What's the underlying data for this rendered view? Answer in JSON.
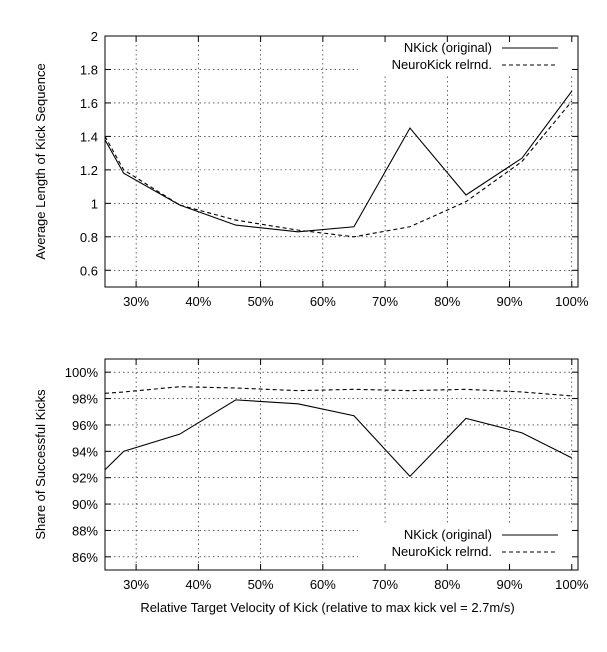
{
  "chart_data": [
    {
      "type": "line",
      "title": "",
      "xlabel": "",
      "ylabel": "Average Length of Kick Sequence",
      "xlim": [
        0.25,
        1.01
      ],
      "ylim": [
        0.5,
        2.0
      ],
      "x_ticks": [
        0.3,
        0.4,
        0.5,
        0.6,
        0.7,
        0.8,
        0.9,
        1.0
      ],
      "x_tick_labels": [
        "30%",
        "40%",
        "50%",
        "60%",
        "70%",
        "80%",
        "90%",
        "100%"
      ],
      "y_ticks": [
        0.6,
        0.8,
        1.0,
        1.2,
        1.4,
        1.6,
        1.8,
        2.0
      ],
      "y_tick_labels": [
        "0.6",
        "0.8",
        "1",
        "1.2",
        "1.4",
        "1.6",
        "1.8",
        "2"
      ],
      "grid": true,
      "legend_position": "top-right",
      "series": [
        {
          "name": "NKick (original)",
          "style": "solid",
          "x": [
            0.25,
            0.28,
            0.37,
            0.46,
            0.56,
            0.65,
            0.74,
            0.83,
            0.92,
            1.0
          ],
          "y": [
            1.38,
            1.18,
            0.99,
            0.87,
            0.83,
            0.86,
            1.45,
            1.05,
            1.27,
            1.67
          ]
        },
        {
          "name": "NeuroKick relrnd.",
          "style": "dashed",
          "x": [
            0.25,
            0.28,
            0.37,
            0.46,
            0.56,
            0.65,
            0.74,
            0.83,
            0.92,
            1.0
          ],
          "y": [
            1.4,
            1.2,
            0.99,
            0.9,
            0.84,
            0.8,
            0.86,
            1.01,
            1.25,
            1.61
          ]
        }
      ]
    },
    {
      "type": "line",
      "title": "",
      "xlabel": "Relative Target Velocity of Kick (relative to max kick vel = 2.7m/s)",
      "ylabel": "Share of Successful Kicks",
      "xlim": [
        0.25,
        1.01
      ],
      "ylim": [
        0.85,
        1.01
      ],
      "x_ticks": [
        0.3,
        0.4,
        0.5,
        0.6,
        0.7,
        0.8,
        0.9,
        1.0
      ],
      "x_tick_labels": [
        "30%",
        "40%",
        "50%",
        "60%",
        "70%",
        "80%",
        "90%",
        "100%"
      ],
      "y_ticks": [
        0.86,
        0.88,
        0.9,
        0.92,
        0.94,
        0.96,
        0.98,
        1.0
      ],
      "y_tick_labels": [
        "86%",
        "88%",
        "90%",
        "92%",
        "94%",
        "96%",
        "98%",
        "100%"
      ],
      "grid": true,
      "legend_position": "bottom-right",
      "series": [
        {
          "name": "NKick (original)",
          "style": "solid",
          "x": [
            0.25,
            0.28,
            0.37,
            0.46,
            0.56,
            0.65,
            0.74,
            0.83,
            0.92,
            1.0
          ],
          "y": [
            0.926,
            0.94,
            0.953,
            0.979,
            0.976,
            0.967,
            0.921,
            0.965,
            0.954,
            0.935
          ]
        },
        {
          "name": "NeuroKick relrnd.",
          "style": "dashed",
          "x": [
            0.25,
            0.28,
            0.37,
            0.46,
            0.56,
            0.65,
            0.74,
            0.83,
            0.92,
            1.0
          ],
          "y": [
            0.984,
            0.985,
            0.989,
            0.988,
            0.986,
            0.987,
            0.986,
            0.987,
            0.985,
            0.982
          ]
        }
      ]
    }
  ]
}
